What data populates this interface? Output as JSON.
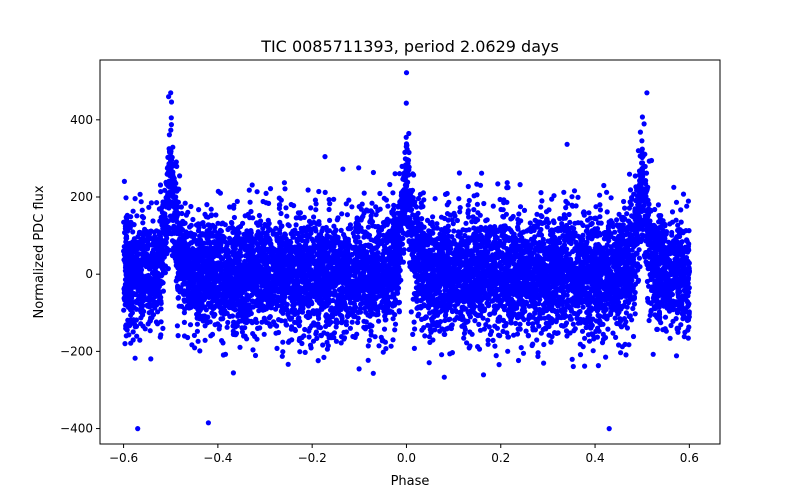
{
  "chart_data": {
    "type": "scatter",
    "title": "TIC 0085711393, period 2.0629 days",
    "xlabel": "Phase",
    "ylabel": "Normalized PDC flux",
    "xlim": [
      -0.65,
      0.665
    ],
    "ylim": [
      -440,
      555
    ],
    "xticks": [
      -0.6,
      -0.4,
      -0.2,
      0.0,
      0.2,
      0.4,
      0.6
    ],
    "xtick_labels": [
      "−0.6",
      "−0.4",
      "−0.2",
      "0.0",
      "0.2",
      "0.4",
      "0.6"
    ],
    "yticks": [
      -400,
      -200,
      0,
      200,
      400
    ],
    "ytick_labels": [
      "−400",
      "−200",
      "0",
      "200",
      "400"
    ],
    "grid": false,
    "legend": "none",
    "series": [
      {
        "name": "PDC flux",
        "color": "#0000ff",
        "marker": "circle",
        "x_range": [
          -0.6,
          0.6
        ],
        "n_points": 9000,
        "baseline_scatter_sd": 75,
        "peaks": [
          {
            "center": -0.5,
            "amplitude": 280,
            "width": 0.012
          },
          {
            "center": 0.0,
            "amplitude": 280,
            "width": 0.012
          },
          {
            "center": 0.5,
            "amplitude": 280,
            "width": 0.012
          }
        ],
        "highest_points": [
          {
            "x": 0.0,
            "y": 522
          },
          {
            "x": -0.5,
            "y": 470
          },
          {
            "x": 0.51,
            "y": 470
          }
        ],
        "lowest_points": [
          {
            "x": -0.57,
            "y": -400
          },
          {
            "x": 0.43,
            "y": -400
          },
          {
            "x": -0.42,
            "y": -385
          }
        ]
      }
    ]
  }
}
